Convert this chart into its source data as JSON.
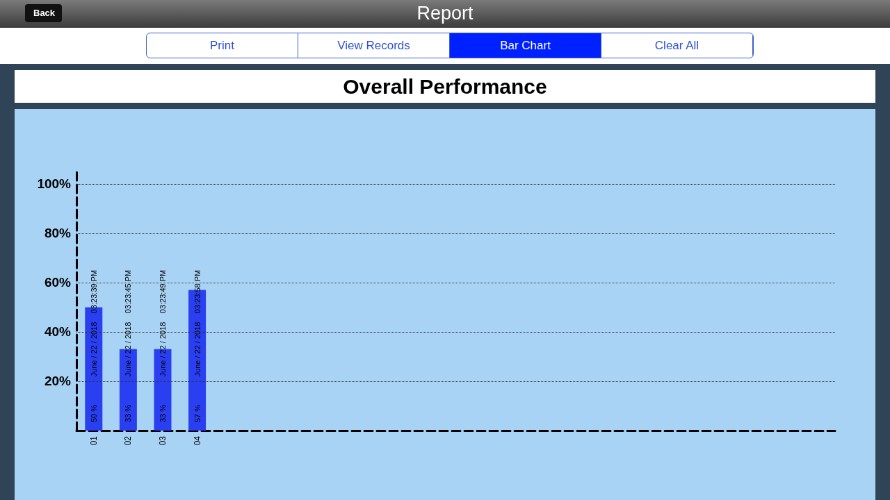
{
  "chart_data": {
    "type": "bar",
    "title": "Overall Performance",
    "categories": [
      "01",
      "02",
      "03",
      "04",
      null,
      null,
      null,
      null,
      null,
      null,
      null,
      null,
      null,
      null,
      null,
      null,
      null,
      null,
      null,
      null,
      null,
      null
    ],
    "values": [
      50,
      33,
      33,
      57,
      null,
      null,
      null,
      null,
      null,
      null,
      null,
      null,
      null,
      null,
      null,
      null,
      null,
      null,
      null,
      null,
      null,
      null
    ],
    "value_labels": [
      "50 %",
      "33 %",
      "33 %",
      "57 %",
      null,
      null,
      null,
      null,
      null,
      null,
      null,
      null,
      null,
      null,
      null,
      null,
      null,
      null,
      null,
      null,
      null,
      null
    ],
    "color": "#2b3ff2",
    "ylim": [
      0,
      105
    ],
    "yticks": [
      {
        "value": 20,
        "label": "20%"
      },
      {
        "value": 40,
        "label": "40%"
      },
      {
        "value": 60,
        "label": "60%"
      },
      {
        "value": 80,
        "label": "80%"
      },
      {
        "value": 100,
        "label": "100%"
      }
    ],
    "grid": "y",
    "line_style": "dashed",
    "annotations": [
      "Report",
      "Back",
      "Print",
      "View Records",
      "Bar Chart",
      "Clear All",
      "June / 22 / 2018",
      "03:23:39 PM",
      "June / 22 / 2018",
      "03:23:45 PM",
      "June / 22 / 2018",
      "03:23:49 PM",
      "June / 22 / 2018",
      "03:23:58 PM"
    ]
  }
}
